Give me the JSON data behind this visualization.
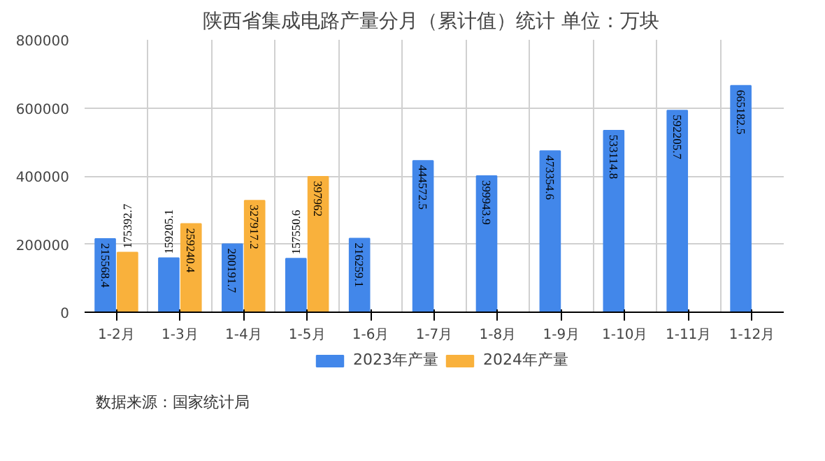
{
  "chart_data": {
    "type": "bar",
    "title": "陕西省集成电路产量分月（累计值）统计  单位：万块",
    "categories": [
      "1-2月",
      "1-3月",
      "1-4月",
      "1-5月",
      "1-6月",
      "1-7月",
      "1-8月",
      "1-9月",
      "1-10月",
      "1-11月",
      "1-12月"
    ],
    "series": [
      {
        "name": "2023年产量",
        "color": "#4287ea",
        "values": [
          215568.4,
          159205.1,
          200191.7,
          157550.6,
          216259.1,
          444572.5,
          399943.9,
          473354.6,
          533114.8,
          592205.7,
          665182.5
        ]
      },
      {
        "name": "2024年产量",
        "color": "#f9b13c",
        "values": [
          175392.7,
          259240.4,
          327917.2,
          397962,
          null,
          null,
          null,
          null,
          null,
          null,
          null
        ]
      }
    ],
    "ylim": [
      0,
      800000
    ],
    "yticks": [
      0,
      200000,
      400000,
      600000,
      800000
    ],
    "grid": true,
    "legend": "bottom",
    "data_labels": true,
    "annotations": [
      "数据来源：国家统计局"
    ]
  }
}
